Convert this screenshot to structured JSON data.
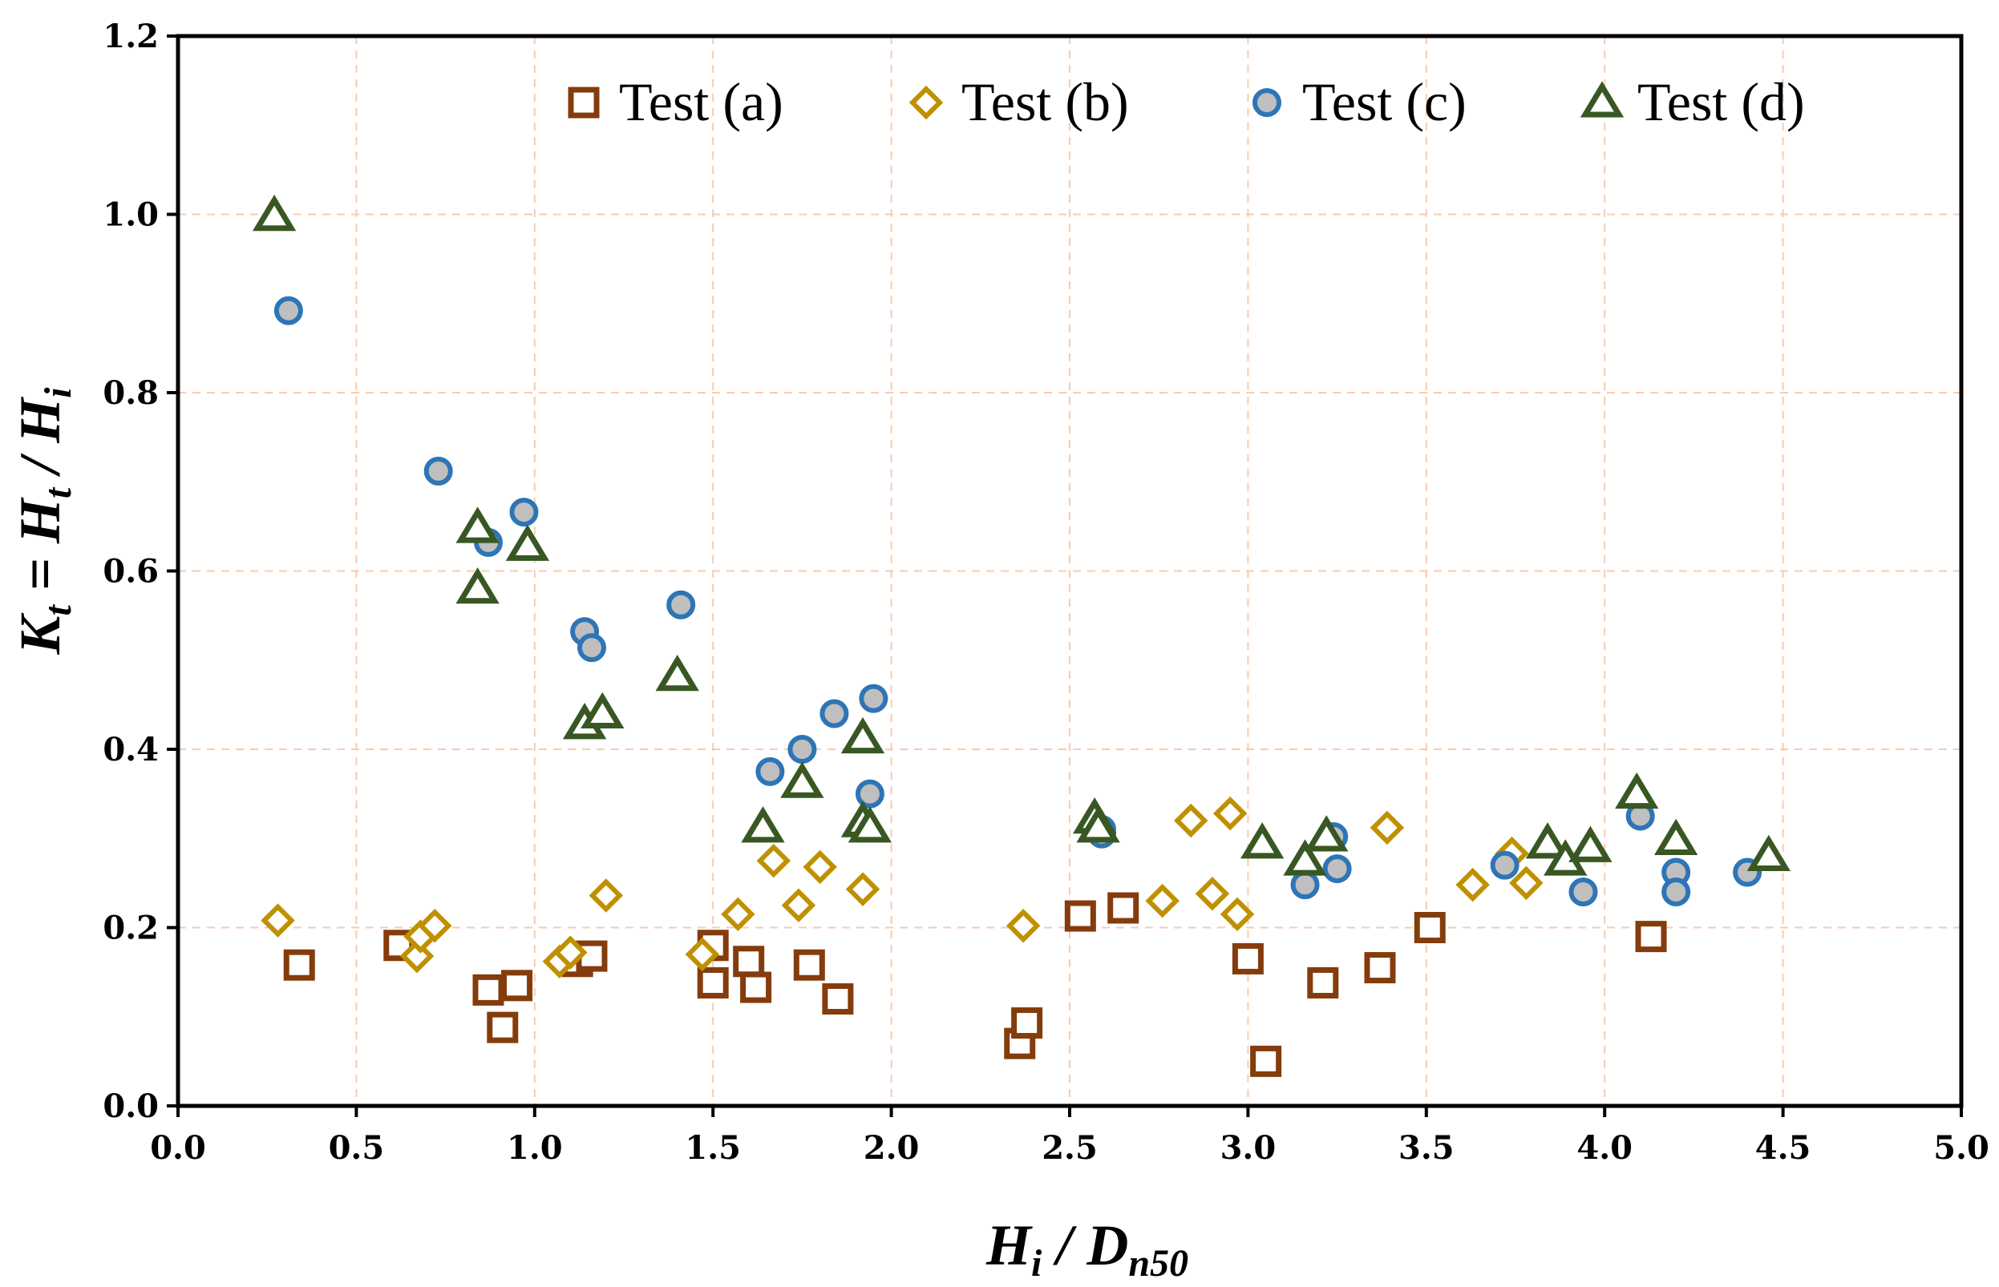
{
  "chart_data": {
    "type": "scatter",
    "title": "",
    "xlabel": {
      "main": "H",
      "main_sub": "i",
      "sep": " / ",
      "second": "D",
      "second_sub": "n50"
    },
    "ylabel": {
      "lhs": "K",
      "lhs_sub": "t",
      "eq": " = ",
      "num": "H",
      "num_sub": "t",
      "sep": " / ",
      "den": "H",
      "den_sub": "i"
    },
    "xlim": [
      0.0,
      5.0
    ],
    "ylim": [
      0.0,
      1.2
    ],
    "x_ticks": [
      "0.0",
      "0.5",
      "1.0",
      "1.5",
      "2.0",
      "2.5",
      "3.0",
      "3.5",
      "4.0",
      "4.5",
      "5.0"
    ],
    "y_ticks": [
      "0.0",
      "0.2",
      "0.4",
      "0.6",
      "0.8",
      "1.0",
      "1.2"
    ],
    "grid": true,
    "legend_position": "top",
    "series": [
      {
        "name": "Test (a)",
        "marker": "square",
        "stroke": "#843C0C",
        "fill": "#ffffff",
        "points": [
          [
            0.34,
            0.158
          ],
          [
            0.62,
            0.18
          ],
          [
            0.87,
            0.13
          ],
          [
            0.91,
            0.088
          ],
          [
            0.95,
            0.135
          ],
          [
            1.12,
            0.162
          ],
          [
            1.16,
            0.168
          ],
          [
            1.5,
            0.18
          ],
          [
            1.5,
            0.138
          ],
          [
            1.6,
            0.162
          ],
          [
            1.62,
            0.133
          ],
          [
            1.77,
            0.158
          ],
          [
            1.85,
            0.12
          ],
          [
            2.36,
            0.07
          ],
          [
            2.38,
            0.093
          ],
          [
            2.53,
            0.213
          ],
          [
            2.65,
            0.222
          ],
          [
            3.0,
            0.165
          ],
          [
            3.05,
            0.05
          ],
          [
            3.21,
            0.138
          ],
          [
            3.37,
            0.155
          ],
          [
            3.51,
            0.2
          ],
          [
            4.13,
            0.19
          ]
        ]
      },
      {
        "name": "Test (b)",
        "marker": "diamond",
        "stroke": "#BF9000",
        "fill": "#ffffff",
        "points": [
          [
            0.28,
            0.208
          ],
          [
            0.67,
            0.168
          ],
          [
            0.68,
            0.19
          ],
          [
            0.72,
            0.202
          ],
          [
            1.07,
            0.162
          ],
          [
            1.1,
            0.172
          ],
          [
            1.2,
            0.236
          ],
          [
            1.47,
            0.17
          ],
          [
            1.57,
            0.215
          ],
          [
            1.67,
            0.275
          ],
          [
            1.74,
            0.225
          ],
          [
            1.8,
            0.268
          ],
          [
            1.92,
            0.243
          ],
          [
            2.37,
            0.202
          ],
          [
            2.76,
            0.23
          ],
          [
            2.84,
            0.32
          ],
          [
            2.9,
            0.238
          ],
          [
            2.95,
            0.328
          ],
          [
            2.97,
            0.215
          ],
          [
            3.39,
            0.312
          ],
          [
            3.63,
            0.248
          ],
          [
            3.74,
            0.283
          ],
          [
            3.78,
            0.25
          ]
        ]
      },
      {
        "name": "Test (c)",
        "marker": "circle",
        "stroke": "#2E75B6",
        "fill": "#BFBFBF",
        "points": [
          [
            0.31,
            0.892
          ],
          [
            0.73,
            0.712
          ],
          [
            0.87,
            0.632
          ],
          [
            0.97,
            0.666
          ],
          [
            1.14,
            0.532
          ],
          [
            1.16,
            0.514
          ],
          [
            1.41,
            0.562
          ],
          [
            1.66,
            0.375
          ],
          [
            1.75,
            0.4
          ],
          [
            1.84,
            0.44
          ],
          [
            1.94,
            0.35
          ],
          [
            1.95,
            0.457
          ],
          [
            2.59,
            0.31
          ],
          [
            2.59,
            0.305
          ],
          [
            3.16,
            0.248
          ],
          [
            3.24,
            0.302
          ],
          [
            3.25,
            0.266
          ],
          [
            3.72,
            0.27
          ],
          [
            3.94,
            0.24
          ],
          [
            4.1,
            0.325
          ],
          [
            4.2,
            0.262
          ],
          [
            4.2,
            0.24
          ],
          [
            4.4,
            0.262
          ]
        ]
      },
      {
        "name": "Test (d)",
        "marker": "triangle",
        "stroke": "#385723",
        "fill": "#ffffff",
        "points": [
          [
            0.27,
            0.998
          ],
          [
            0.84,
            0.648
          ],
          [
            0.84,
            0.58
          ],
          [
            0.98,
            0.628
          ],
          [
            1.14,
            0.428
          ],
          [
            1.19,
            0.44
          ],
          [
            1.4,
            0.482
          ],
          [
            1.64,
            0.312
          ],
          [
            1.75,
            0.362
          ],
          [
            1.92,
            0.412
          ],
          [
            1.92,
            0.318
          ],
          [
            1.94,
            0.312
          ],
          [
            2.57,
            0.322
          ],
          [
            2.58,
            0.312
          ],
          [
            3.04,
            0.294
          ],
          [
            3.16,
            0.275
          ],
          [
            3.22,
            0.302
          ],
          [
            3.84,
            0.294
          ],
          [
            3.89,
            0.275
          ],
          [
            3.96,
            0.29
          ],
          [
            4.09,
            0.35
          ],
          [
            4.2,
            0.298
          ],
          [
            4.46,
            0.28
          ]
        ]
      }
    ]
  }
}
